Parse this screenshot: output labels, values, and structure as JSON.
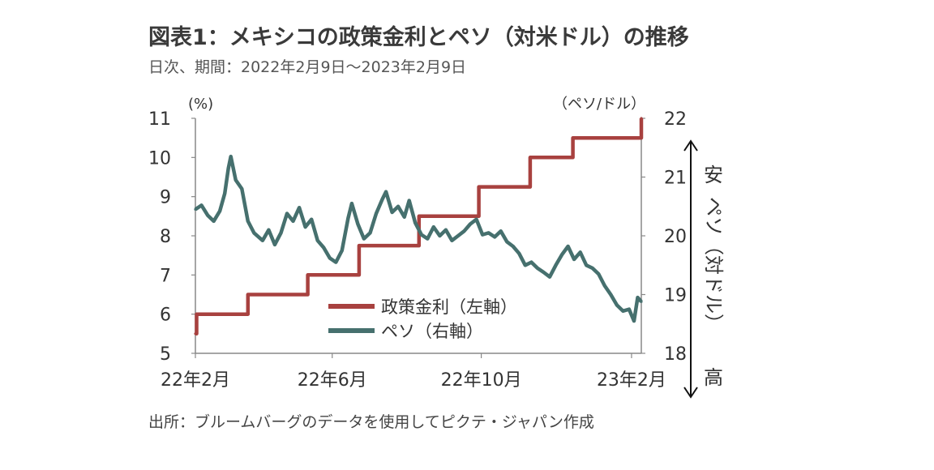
{
  "title": "図表1：メキシコの政策金利とペソ（対米ドル）の推移",
  "subtitle": "日次、期間：2022年2月9日～2023年2月9日",
  "source": "出所：ブルームバーグのデータを使用してピクテ・ジャパン作成",
  "side_annotation": {
    "top": "安",
    "middle": "ペソ（対ドル）",
    "bottom": "高"
  },
  "colors": {
    "rate": "#A8413F",
    "peso": "#46706E",
    "axis": "#888888"
  },
  "chart_data": {
    "type": "line",
    "left_axis": {
      "unit_label": "(%)",
      "ylim": [
        5,
        11
      ],
      "ticks": [
        "5",
        "6",
        "7",
        "8",
        "9",
        "10",
        "11"
      ]
    },
    "right_axis": {
      "unit_label": "（ペソ/ドル）",
      "ylim": [
        18,
        22
      ],
      "ticks": [
        "18",
        "19",
        "20",
        "21",
        "22"
      ],
      "inverted": true
    },
    "x_ticks": [
      {
        "date": "2022-02-09",
        "label": "22年2月"
      },
      {
        "date": "2022-06-01",
        "label": "22年6月"
      },
      {
        "date": "2022-10-01",
        "label": "22年10月"
      },
      {
        "date": "2023-02-01",
        "label": "23年2月"
      }
    ],
    "xlim": [
      "2022-02-09",
      "2023-02-09"
    ],
    "legend": {
      "placement": "bottom-center",
      "entries": [
        "政策金利（左軸）",
        "ペソ（右軸）"
      ]
    },
    "series": [
      {
        "name": "政策金利（左軸）",
        "axis": "left",
        "step": true,
        "points": [
          [
            "2022-02-09",
            5.5
          ],
          [
            "2022-02-10",
            6.0
          ],
          [
            "2022-03-24",
            6.5
          ],
          [
            "2022-05-12",
            7.0
          ],
          [
            "2022-06-23",
            7.75
          ],
          [
            "2022-08-11",
            8.5
          ],
          [
            "2022-09-29",
            9.25
          ],
          [
            "2022-11-10",
            10.0
          ],
          [
            "2022-12-15",
            10.5
          ],
          [
            "2023-02-09",
            11.0
          ]
        ]
      },
      {
        "name": "ペソ（右軸）",
        "axis": "right",
        "points": [
          [
            "2022-02-09",
            20.45
          ],
          [
            "2022-02-14",
            20.52
          ],
          [
            "2022-02-19",
            20.35
          ],
          [
            "2022-02-24",
            20.25
          ],
          [
            "2022-03-01",
            20.42
          ],
          [
            "2022-03-05",
            20.72
          ],
          [
            "2022-03-08",
            21.15
          ],
          [
            "2022-03-10",
            21.35
          ],
          [
            "2022-03-14",
            20.95
          ],
          [
            "2022-03-19",
            20.8
          ],
          [
            "2022-03-24",
            20.25
          ],
          [
            "2022-03-29",
            20.05
          ],
          [
            "2022-04-05",
            19.92
          ],
          [
            "2022-04-10",
            20.1
          ],
          [
            "2022-04-15",
            19.85
          ],
          [
            "2022-04-20",
            20.05
          ],
          [
            "2022-04-25",
            20.38
          ],
          [
            "2022-04-30",
            20.25
          ],
          [
            "2022-05-05",
            20.48
          ],
          [
            "2022-05-10",
            20.15
          ],
          [
            "2022-05-15",
            20.28
          ],
          [
            "2022-05-20",
            19.92
          ],
          [
            "2022-05-25",
            19.8
          ],
          [
            "2022-05-30",
            19.62
          ],
          [
            "2022-06-04",
            19.55
          ],
          [
            "2022-06-09",
            19.75
          ],
          [
            "2022-06-14",
            20.3
          ],
          [
            "2022-06-17",
            20.55
          ],
          [
            "2022-06-22",
            20.2
          ],
          [
            "2022-06-27",
            19.95
          ],
          [
            "2022-07-02",
            20.05
          ],
          [
            "2022-07-07",
            20.38
          ],
          [
            "2022-07-12",
            20.62
          ],
          [
            "2022-07-15",
            20.75
          ],
          [
            "2022-07-20",
            20.4
          ],
          [
            "2022-07-25",
            20.5
          ],
          [
            "2022-07-30",
            20.32
          ],
          [
            "2022-08-03",
            20.6
          ],
          [
            "2022-08-08",
            20.22
          ],
          [
            "2022-08-13",
            20.02
          ],
          [
            "2022-08-18",
            19.95
          ],
          [
            "2022-08-23",
            20.15
          ],
          [
            "2022-08-28",
            20.0
          ],
          [
            "2022-09-02",
            20.1
          ],
          [
            "2022-09-07",
            19.92
          ],
          [
            "2022-09-12",
            20.0
          ],
          [
            "2022-09-17",
            20.08
          ],
          [
            "2022-09-22",
            20.2
          ],
          [
            "2022-09-27",
            20.28
          ],
          [
            "2022-10-02",
            20.02
          ],
          [
            "2022-10-07",
            20.05
          ],
          [
            "2022-10-12",
            19.98
          ],
          [
            "2022-10-17",
            20.08
          ],
          [
            "2022-10-22",
            19.9
          ],
          [
            "2022-10-27",
            19.82
          ],
          [
            "2022-11-01",
            19.7
          ],
          [
            "2022-11-06",
            19.5
          ],
          [
            "2022-11-11",
            19.55
          ],
          [
            "2022-11-16",
            19.45
          ],
          [
            "2022-11-21",
            19.38
          ],
          [
            "2022-11-26",
            19.3
          ],
          [
            "2022-12-01",
            19.5
          ],
          [
            "2022-12-06",
            19.68
          ],
          [
            "2022-12-11",
            19.82
          ],
          [
            "2022-12-16",
            19.6
          ],
          [
            "2022-12-21",
            19.72
          ],
          [
            "2022-12-26",
            19.5
          ],
          [
            "2022-12-31",
            19.45
          ],
          [
            "2023-01-05",
            19.35
          ],
          [
            "2023-01-10",
            19.15
          ],
          [
            "2023-01-15",
            19.0
          ],
          [
            "2023-01-20",
            18.82
          ],
          [
            "2023-01-25",
            18.72
          ],
          [
            "2023-01-30",
            18.75
          ],
          [
            "2023-02-03",
            18.55
          ],
          [
            "2023-02-06",
            18.95
          ],
          [
            "2023-02-09",
            18.88
          ]
        ]
      }
    ]
  }
}
